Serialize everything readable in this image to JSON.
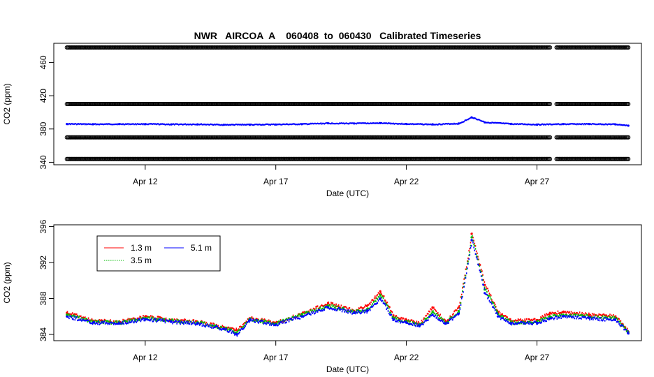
{
  "title": "NWR   AIRCOA  A    060408  to  060430   Calibrated Timeseries",
  "colors": {
    "red": "#ff0000",
    "green": "#00bb00",
    "blue": "#0000ff",
    "black": "#000000"
  },
  "chart_data": [
    {
      "type": "scatter",
      "title": "NWR   AIRCOA  A    060408  to  060430   Calibrated Timeseries",
      "xlabel": "Date (UTC)",
      "ylabel": "CO2 (ppm)",
      "xlim": [
        "2006-04-08T12:00",
        "2006-05-01T00:00"
      ],
      "ylim": [
        337,
        483
      ],
      "xticks": [
        {
          "x": "2006-04-12",
          "label": "Apr 12"
        },
        {
          "x": "2006-04-17",
          "label": "Apr 17"
        },
        {
          "x": "2006-04-22",
          "label": "Apr 22"
        },
        {
          "x": "2006-04-27",
          "label": "Apr 27"
        }
      ],
      "yticks": [
        340,
        380,
        420,
        460
      ],
      "grid": false,
      "calibration_levels_ppm": [
        478,
        410,
        370,
        344
      ],
      "series": [
        {
          "color": "blue",
          "x": [
            "2006-04-09T00:00",
            "2006-04-10T00:00",
            "2006-04-11T00:00",
            "2006-04-12T00:00",
            "2006-04-13T00:00",
            "2006-04-14T00:00",
            "2006-04-15T00:00",
            "2006-04-16T00:00",
            "2006-04-17T00:00",
            "2006-04-18T00:00",
            "2006-04-19T00:00",
            "2006-04-20T00:00",
            "2006-04-21T00:00",
            "2006-04-22T00:00",
            "2006-04-23T00:00",
            "2006-04-24T00:00",
            "2006-04-24T12:00",
            "2006-04-25T00:00",
            "2006-04-26T00:00",
            "2006-04-27T00:00",
            "2006-04-28T00:00",
            "2006-04-29T00:00",
            "2006-04-30T00:00",
            "2006-04-30T12:00"
          ],
          "y": [
            386,
            385.7,
            385.8,
            385.9,
            385.5,
            385.6,
            385,
            385.2,
            385.4,
            385.8,
            386.8,
            386.6,
            387,
            386,
            385.5,
            386.5,
            394,
            388,
            386,
            385.3,
            385.8,
            385.9,
            385.6,
            384
          ]
        }
      ]
    },
    {
      "type": "scatter",
      "title": "",
      "xlabel": "Date (UTC)",
      "ylabel": "CO2 (ppm)",
      "xlim": [
        "2006-04-08T12:00",
        "2006-05-01T00:00"
      ],
      "ylim": [
        383.3,
        396.2
      ],
      "xticks": [
        {
          "x": "2006-04-12",
          "label": "Apr 12"
        },
        {
          "x": "2006-04-17",
          "label": "Apr 17"
        },
        {
          "x": "2006-04-22",
          "label": "Apr 22"
        },
        {
          "x": "2006-04-27",
          "label": "Apr 27"
        }
      ],
      "yticks": [
        384,
        388,
        392,
        396
      ],
      "grid": false,
      "legend_position": "top-left",
      "series": [
        {
          "name": "1.3 m",
          "color": "red",
          "x": [
            "2006-04-09T00:00",
            "2006-04-10T00:00",
            "2006-04-11T00:00",
            "2006-04-12T00:00",
            "2006-04-13T00:00",
            "2006-04-14T00:00",
            "2006-04-15T00:00",
            "2006-04-15T12:00",
            "2006-04-16T00:00",
            "2006-04-17T00:00",
            "2006-04-18T00:00",
            "2006-04-19T00:00",
            "2006-04-20T00:00",
            "2006-04-20T12:00",
            "2006-04-21T00:00",
            "2006-04-21T12:00",
            "2006-04-22T00:00",
            "2006-04-22T12:00",
            "2006-04-23T00:00",
            "2006-04-23T12:00",
            "2006-04-24T00:00",
            "2006-04-24T12:00",
            "2006-04-25T00:00",
            "2006-04-25T12:00",
            "2006-04-26T00:00",
            "2006-04-27T00:00",
            "2006-04-27T12:00",
            "2006-04-28T00:00",
            "2006-04-29T00:00",
            "2006-04-30T00:00",
            "2006-04-30T12:00"
          ],
          "y": [
            386.4,
            385.5,
            385.4,
            386,
            385.6,
            385.4,
            384.8,
            384.5,
            385.8,
            385.3,
            386.3,
            387.5,
            386.6,
            387.2,
            388.8,
            386,
            385.6,
            385.2,
            387,
            385.4,
            387,
            395.2,
            389.5,
            386.5,
            385.5,
            385.6,
            386.4,
            386.5,
            386.2,
            386,
            384.3
          ]
        },
        {
          "name": "3.5 m",
          "color": "green",
          "x": [
            "2006-04-09T00:00",
            "2006-04-10T00:00",
            "2006-04-11T00:00",
            "2006-04-12T00:00",
            "2006-04-13T00:00",
            "2006-04-14T00:00",
            "2006-04-15T00:00",
            "2006-04-15T12:00",
            "2006-04-16T00:00",
            "2006-04-17T00:00",
            "2006-04-18T00:00",
            "2006-04-19T00:00",
            "2006-04-20T00:00",
            "2006-04-20T12:00",
            "2006-04-21T00:00",
            "2006-04-21T12:00",
            "2006-04-22T00:00",
            "2006-04-22T12:00",
            "2006-04-23T00:00",
            "2006-04-23T12:00",
            "2006-04-24T00:00",
            "2006-04-24T12:00",
            "2006-04-25T00:00",
            "2006-04-25T12:00",
            "2006-04-26T00:00",
            "2006-04-27T00:00",
            "2006-04-27T12:00",
            "2006-04-28T00:00",
            "2006-04-29T00:00",
            "2006-04-30T00:00",
            "2006-04-30T12:00"
          ],
          "y": [
            386.2,
            385.4,
            385.3,
            385.8,
            385.5,
            385.3,
            384.7,
            384.2,
            385.7,
            385.2,
            386.2,
            387.2,
            386.5,
            386.8,
            388.4,
            385.8,
            385.4,
            385,
            386.5,
            385.3,
            386.6,
            394.8,
            389,
            386.3,
            385.3,
            385.4,
            386,
            386.2,
            386,
            385.8,
            384.2
          ]
        },
        {
          "name": "5.1 m",
          "color": "blue",
          "x": [
            "2006-04-09T00:00",
            "2006-04-10T00:00",
            "2006-04-11T00:00",
            "2006-04-12T00:00",
            "2006-04-13T00:00",
            "2006-04-14T00:00",
            "2006-04-15T00:00",
            "2006-04-15T12:00",
            "2006-04-16T00:00",
            "2006-04-17T00:00",
            "2006-04-18T00:00",
            "2006-04-19T00:00",
            "2006-04-20T00:00",
            "2006-04-20T12:00",
            "2006-04-21T00:00",
            "2006-04-21T12:00",
            "2006-04-22T00:00",
            "2006-04-22T12:00",
            "2006-04-23T00:00",
            "2006-04-23T12:00",
            "2006-04-24T00:00",
            "2006-04-24T12:00",
            "2006-04-25T00:00",
            "2006-04-25T12:00",
            "2006-04-26T00:00",
            "2006-04-27T00:00",
            "2006-04-27T12:00",
            "2006-04-28T00:00",
            "2006-04-29T00:00",
            "2006-04-30T00:00",
            "2006-04-30T12:00"
          ],
          "y": [
            386,
            385.3,
            385.2,
            385.7,
            385.4,
            385.2,
            384.6,
            384,
            385.6,
            385.1,
            386,
            387,
            386.4,
            386.6,
            388,
            385.6,
            385.3,
            384.9,
            386.2,
            385.2,
            386.3,
            394.5,
            388.6,
            386,
            385.2,
            385.3,
            385.8,
            386,
            385.8,
            385.6,
            384.1
          ]
        }
      ]
    }
  ]
}
